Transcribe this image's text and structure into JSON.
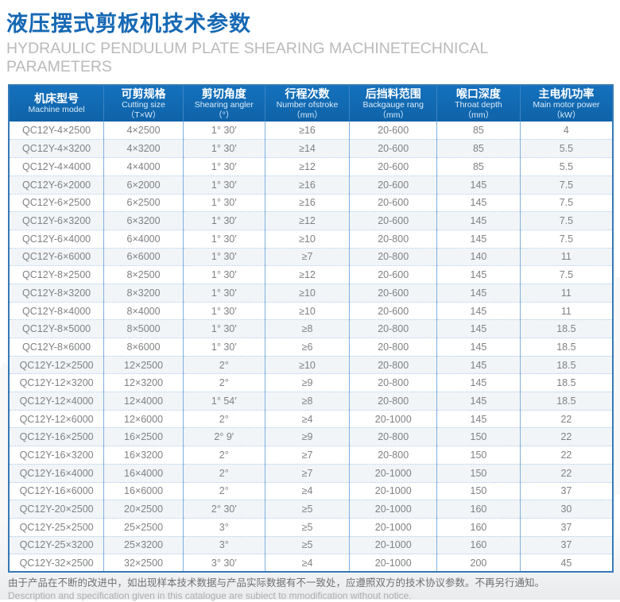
{
  "header": {
    "title_cn": "液压摆式剪板机技术参数",
    "subtitle_en": "HYDRAULIC PENDULUM PLATE SHEARING MACHINETECHNICAL PARAMETERS"
  },
  "colors": {
    "title_blue": "#1568b4",
    "header_bg": "#0f63a8",
    "cell_border_blue": "#7fb0e0",
    "row_stripe": "#f2f5f8",
    "cell_text": "#7f8184"
  },
  "table": {
    "columns": [
      {
        "cn": "机床型号",
        "en": "Machine model",
        "unit": ""
      },
      {
        "cn": "可剪规格",
        "en": "Cutting size",
        "unit": "（T×W）"
      },
      {
        "cn": "剪切角度",
        "en": "Shearing angler",
        "unit": "（°）"
      },
      {
        "cn": "行程次数",
        "en": "Number ofstroke",
        "unit": "（mm）"
      },
      {
        "cn": "后挡料范围",
        "en": "Backgauge rang",
        "unit": "（mm）"
      },
      {
        "cn": "喉口深度",
        "en": "Throat depth",
        "unit": "（mm）"
      },
      {
        "cn": "主电机功率",
        "en": "Main motor power",
        "unit": "（kW）"
      }
    ],
    "rows": [
      [
        "QC12Y-4×2500",
        "4×2500",
        "1° 30′",
        "≥16",
        "20-600",
        "85",
        "4"
      ],
      [
        "QC12Y-4×3200",
        "4×3200",
        "1° 30′",
        "≥14",
        "20-600",
        "85",
        "5.5"
      ],
      [
        "QC12Y-4×4000",
        "4×4000",
        "1° 30′",
        "≥12",
        "20-600",
        "85",
        "5.5"
      ],
      [
        "QC12Y-6×2000",
        "6×2000",
        "1° 30′",
        "≥16",
        "20-600",
        "145",
        "7.5"
      ],
      [
        "QC12Y-6×2500",
        "6×2500",
        "1° 30′",
        "≥16",
        "20-600",
        "145",
        "7.5"
      ],
      [
        "QC12Y-6×3200",
        "6×3200",
        "1° 30′",
        "≥12",
        "20-600",
        "145",
        "7.5"
      ],
      [
        "QC12Y-6×4000",
        "6×4000",
        "1° 30′",
        "≥10",
        "20-800",
        "145",
        "7.5"
      ],
      [
        "QC12Y-6×6000",
        "6×6000",
        "1° 30′",
        "≥7",
        "20-800",
        "140",
        "11"
      ],
      [
        "QC12Y-8×2500",
        "8×2500",
        "1° 30′",
        "≥12",
        "20-600",
        "145",
        "7.5"
      ],
      [
        "QC12Y-8×3200",
        "8×3200",
        "1° 30′",
        "≥10",
        "20-600",
        "145",
        "11"
      ],
      [
        "QC12Y-8×4000",
        "8×4000",
        "1° 30′",
        "≥10",
        "20-600",
        "145",
        "11"
      ],
      [
        "QC12Y-8×5000",
        "8×5000",
        "1° 30′",
        "≥8",
        "20-800",
        "145",
        "18.5"
      ],
      [
        "QC12Y-8×6000",
        "8×6000",
        "1° 30′",
        "≥6",
        "20-800",
        "145",
        "18.5"
      ],
      [
        "QC12Y-12×2500",
        "12×2500",
        "2°",
        "≥10",
        "20-800",
        "145",
        "18.5"
      ],
      [
        "QC12Y-12×3200",
        "12×3200",
        "2°",
        "≥9",
        "20-800",
        "145",
        "18.5"
      ],
      [
        "QC12Y-12×4000",
        "12×4000",
        "1° 54′",
        "≥8",
        "20-800",
        "145",
        "18.5"
      ],
      [
        "QC12Y-12×6000",
        "12×6000",
        "2°",
        "≥4",
        "20-1000",
        "145",
        "22"
      ],
      [
        "QC12Y-16×2500",
        "16×2500",
        "2° 9′",
        "≥9",
        "20-800",
        "150",
        "22"
      ],
      [
        "QC12Y-16×3200",
        "16×3200",
        "2°",
        "≥7",
        "20-800",
        "150",
        "22"
      ],
      [
        "QC12Y-16×4000",
        "16×4000",
        "2°",
        "≥7",
        "20-1000",
        "150",
        "22"
      ],
      [
        "QC12Y-16×6000",
        "16×6000",
        "2°",
        "≥4",
        "20-1000",
        "150",
        "37"
      ],
      [
        "QC12Y-20×2500",
        "20×2500",
        "2° 30′",
        "≥5",
        "20-1000",
        "160",
        "30"
      ],
      [
        "QC12Y-25×2500",
        "25×2500",
        "3°",
        "≥5",
        "20-1000",
        "160",
        "37"
      ],
      [
        "QC12Y-25×3200",
        "25×3200",
        "3°",
        "≥5",
        "20-1000",
        "160",
        "37"
      ],
      [
        "QC12Y-32×2500",
        "32×2500",
        "3° 30′",
        "≥4",
        "20-1000",
        "200",
        "45"
      ]
    ]
  },
  "footer": {
    "note_cn": "由于产品在不断的改进中，如出现样本技术数据与产品实际数据有不一致处，应遵照双方的技术协议参数。不再另行通知。",
    "note_en": "Description and specification given in this catalogue are subiect to mmodification without notice."
  }
}
